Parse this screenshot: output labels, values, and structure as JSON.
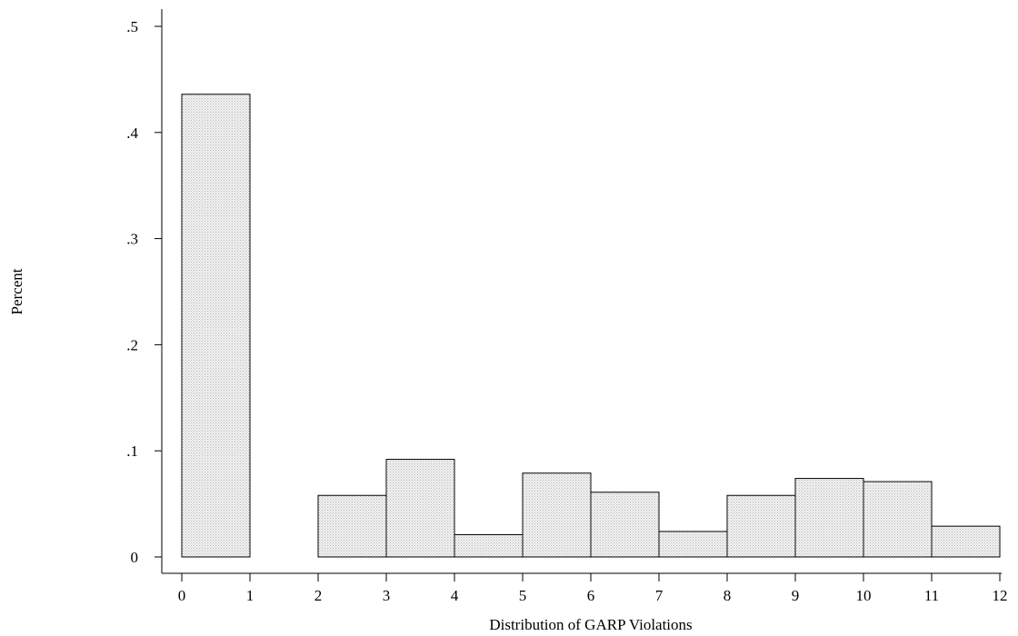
{
  "chart_data": {
    "type": "bar",
    "title": "",
    "xlabel": "Distribution of GARP Violations",
    "ylabel": "Percent",
    "xlim": [
      0,
      12
    ],
    "ylim": [
      0,
      0.5
    ],
    "x_ticks": [
      0,
      1,
      2,
      3,
      4,
      5,
      6,
      7,
      8,
      9,
      10,
      11,
      12
    ],
    "x_tick_labels": [
      "0",
      "1",
      "2",
      "3",
      "4",
      "5",
      "6",
      "7",
      "8",
      "9",
      "10",
      "11",
      "12"
    ],
    "y_ticks": [
      0,
      0.1,
      0.2,
      0.3,
      0.4,
      0.5
    ],
    "y_tick_labels": [
      "0",
      ".1",
      ".2",
      ".3",
      ".4",
      ".5"
    ],
    "bins": [
      {
        "start": 0,
        "end": 1,
        "value": 0.436
      },
      {
        "start": 2,
        "end": 3,
        "value": 0.058
      },
      {
        "start": 3,
        "end": 4,
        "value": 0.092
      },
      {
        "start": 4,
        "end": 5,
        "value": 0.021
      },
      {
        "start": 5,
        "end": 6,
        "value": 0.079
      },
      {
        "start": 6,
        "end": 7,
        "value": 0.061
      },
      {
        "start": 7,
        "end": 8,
        "value": 0.024
      },
      {
        "start": 8,
        "end": 9,
        "value": 0.058
      },
      {
        "start": 9,
        "end": 10,
        "value": 0.074
      },
      {
        "start": 10,
        "end": 11,
        "value": 0.071
      },
      {
        "start": 11,
        "end": 12,
        "value": 0.029
      }
    ],
    "bar_fill": "#e8e8e8",
    "bar_stroke": "#000000",
    "grid": false,
    "legend": "none"
  }
}
